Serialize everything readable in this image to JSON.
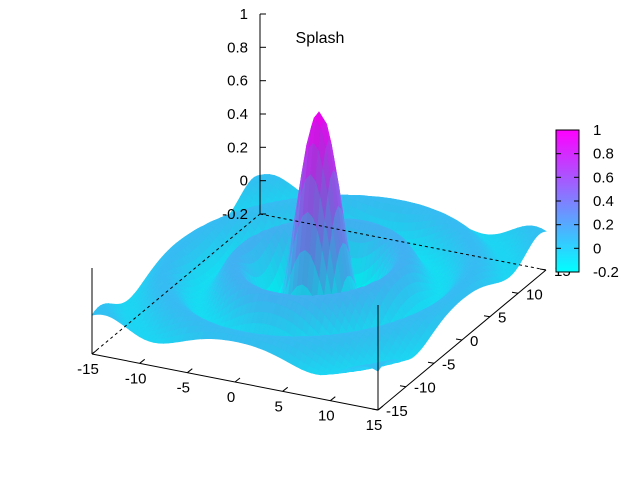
{
  "chart_data": {
    "type": "surface",
    "title": "Splash",
    "function": "sinc-splash",
    "x_range": [
      -15,
      15
    ],
    "y_range": [
      -15,
      15
    ],
    "z_range": [
      -0.2,
      1
    ],
    "x_ticks": [
      "-15",
      "-10",
      "-5",
      "0",
      "5",
      "10",
      "15"
    ],
    "y_ticks": [
      "-15",
      "-10",
      "-5",
      "0",
      "5",
      "10",
      "15"
    ],
    "z_ticks": [
      "-0.2",
      "0",
      "0.2",
      "0.4",
      "0.6",
      "0.8",
      "1"
    ],
    "colorbar_ticks": [
      "-0.2",
      "0",
      "0.2",
      "0.4",
      "0.6",
      "0.8",
      "1"
    ],
    "colorbar_range": [
      -0.2,
      1
    ],
    "colormap": [
      "#00ffff",
      "#ff00ff"
    ],
    "legend_placement": "right",
    "grid": false
  }
}
